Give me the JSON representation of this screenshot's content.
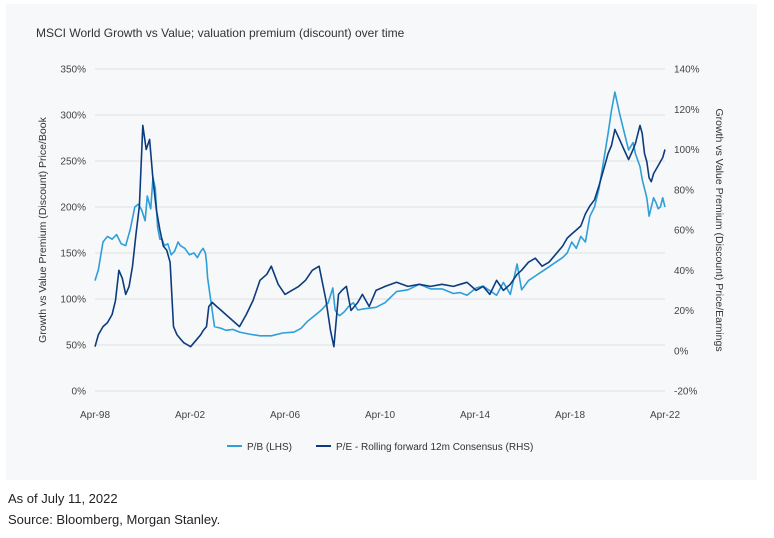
{
  "footnote": {
    "as_of": "As of July 11, 2022",
    "source": "Source: Bloomberg, Morgan Stanley."
  },
  "chart_data": {
    "type": "line",
    "title": "MSCI World Growth vs Value; valuation premium (discount) over time",
    "ylabel_left": "Growth vs Value Premium (Discount) Price/Book",
    "ylabel_right": "Growth vs Value Premium (Discount) Price/Earnings",
    "x_ticks": [
      "Apr-98",
      "Apr-02",
      "Apr-06",
      "Apr-10",
      "Apr-14",
      "Apr-18",
      "Apr-22"
    ],
    "x_range": [
      1998.25,
      2022.25
    ],
    "y_left": {
      "range": [
        0,
        350
      ],
      "ticks": [
        "0%",
        "50%",
        "100%",
        "150%",
        "200%",
        "250%",
        "300%",
        "350%"
      ]
    },
    "y_right": {
      "range": [
        -20,
        140
      ],
      "ticks": [
        "-20%",
        "0%",
        "20%",
        "40%",
        "60%",
        "80%",
        "100%",
        "120%",
        "140%"
      ]
    },
    "grid": true,
    "legend_position": "bottom",
    "series": [
      {
        "name": "P/B (LHS)",
        "axis": "left",
        "color": "#2e9fd8",
        "x": [
          1998.25,
          1998.4,
          1998.6,
          1998.8,
          1999.0,
          1999.2,
          1999.4,
          1999.6,
          1999.8,
          2000.0,
          2000.15,
          2000.3,
          2000.45,
          2000.55,
          2000.7,
          2000.8,
          2000.9,
          2001.0,
          2001.1,
          2001.2,
          2001.3,
          2001.45,
          2001.6,
          2001.75,
          2001.9,
          2002.0,
          2002.2,
          2002.4,
          2002.6,
          2002.75,
          2002.9,
          2003.0,
          2003.1,
          2003.15,
          2003.2,
          2003.3,
          2003.5,
          2003.8,
          2004.0,
          2004.3,
          2004.6,
          2005.0,
          2005.5,
          2006.0,
          2006.5,
          2007.0,
          2007.3,
          2007.6,
          2007.9,
          2008.2,
          2008.5,
          2008.7,
          2008.8,
          2008.9,
          2009.0,
          2009.2,
          2009.4,
          2009.6,
          2009.8,
          2010.0,
          2010.3,
          2010.6,
          2011.0,
          2011.5,
          2012.0,
          2012.5,
          2013.0,
          2013.5,
          2014.0,
          2014.3,
          2014.6,
          2015.0,
          2015.3,
          2015.6,
          2015.9,
          2016.2,
          2016.5,
          2016.8,
          2017.0,
          2017.3,
          2017.6,
          2017.9,
          2018.2,
          2018.5,
          2018.8,
          2019.0,
          2019.2,
          2019.4,
          2019.6,
          2019.8,
          2020.0,
          2020.2,
          2020.4,
          2020.6,
          2020.8,
          2020.95,
          2021.1,
          2021.3,
          2021.5,
          2021.7,
          2021.9,
          2022.0,
          2022.2,
          2022.3,
          2022.4,
          2022.5,
          2022.6,
          2022.7,
          2022.8,
          2022.9,
          2023.0,
          2023.1,
          2023.2,
          2023.3
        ],
        "values": [
          120,
          132,
          162,
          168,
          165,
          170,
          160,
          158,
          176,
          200,
          203,
          197,
          185,
          212,
          198,
          232,
          220,
          178,
          165,
          165,
          158,
          160,
          148,
          152,
          162,
          158,
          155,
          148,
          150,
          145,
          152,
          155,
          150,
          140,
          123,
          105,
          70,
          68,
          66,
          67,
          64,
          62,
          60,
          60,
          63,
          64,
          68,
          76,
          82,
          88,
          96,
          112,
          88,
          84,
          82,
          86,
          92,
          96,
          88,
          89,
          90,
          91,
          96,
          108,
          110,
          116,
          111,
          111,
          106,
          107,
          104,
          112,
          114,
          109,
          104,
          118,
          105,
          138,
          110,
          120,
          125,
          130,
          135,
          140,
          145,
          150,
          162,
          155,
          168,
          162,
          190,
          200,
          220,
          250,
          280,
          305,
          325,
          302,
          282,
          262,
          270,
          258,
          244,
          230,
          220,
          210,
          190,
          200,
          210,
          205,
          198,
          200,
          210,
          200
        ]
      },
      {
        "name": "P/E - Rolling forward 12m Consensus (RHS)",
        "axis": "right",
        "color": "#0d3c7e",
        "x": [
          1998.25,
          1998.4,
          1998.6,
          1998.8,
          1999.0,
          1999.15,
          1999.3,
          1999.45,
          1999.6,
          1999.75,
          1999.9,
          2000.05,
          2000.2,
          2000.35,
          2000.5,
          2000.65,
          2000.8,
          2000.95,
          2001.1,
          2001.25,
          2001.4,
          2001.55,
          2001.7,
          2001.85,
          2002.0,
          2002.15,
          2002.3,
          2002.45,
          2002.6,
          2002.75,
          2002.9,
          2003.0,
          2003.15,
          2003.25,
          2003.4,
          2003.6,
          2003.8,
          2004.0,
          2004.3,
          2004.6,
          2004.9,
          2005.2,
          2005.5,
          2005.8,
          2006.0,
          2006.3,
          2006.6,
          2006.9,
          2007.2,
          2007.5,
          2007.8,
          2008.1,
          2008.4,
          2008.6,
          2008.75,
          2008.85,
          2008.95,
          2009.1,
          2009.3,
          2009.5,
          2009.8,
          2010.0,
          2010.3,
          2010.6,
          2011.0,
          2011.5,
          2012.0,
          2012.5,
          2013.0,
          2013.5,
          2014.0,
          2014.3,
          2014.6,
          2015.0,
          2015.3,
          2015.6,
          2015.9,
          2016.2,
          2016.5,
          2016.8,
          2017.0,
          2017.3,
          2017.6,
          2017.9,
          2018.2,
          2018.5,
          2018.8,
          2019.0,
          2019.2,
          2019.4,
          2019.6,
          2019.8,
          2020.0,
          2020.2,
          2020.4,
          2020.6,
          2020.8,
          2020.95,
          2021.1,
          2021.3,
          2021.5,
          2021.7,
          2021.9,
          2022.0,
          2022.2,
          2022.3,
          2022.4,
          2022.5,
          2022.6,
          2022.7,
          2022.8,
          2022.9,
          2023.0,
          2023.1,
          2023.2,
          2023.3
        ],
        "values": [
          2,
          8,
          12,
          14,
          18,
          25,
          40,
          36,
          28,
          32,
          42,
          58,
          72,
          112,
          100,
          105,
          85,
          70,
          60,
          52,
          50,
          44,
          12,
          8,
          6,
          4,
          3,
          2,
          4,
          6,
          8,
          10,
          12,
          22,
          24,
          22,
          20,
          18,
          15,
          12,
          18,
          25,
          35,
          38,
          42,
          33,
          28,
          30,
          32,
          35,
          40,
          42,
          25,
          10,
          2,
          15,
          28,
          30,
          32,
          20,
          24,
          28,
          22,
          30,
          32,
          34,
          32,
          33,
          32,
          33,
          32,
          33,
          34,
          30,
          32,
          28,
          35,
          30,
          33,
          38,
          40,
          44,
          46,
          42,
          44,
          48,
          52,
          56,
          58,
          60,
          62,
          68,
          72,
          75,
          82,
          90,
          98,
          102,
          110,
          105,
          100,
          95,
          100,
          103,
          112,
          108,
          98,
          94,
          86,
          84,
          88,
          90,
          92,
          94,
          96,
          100
        ]
      }
    ]
  }
}
